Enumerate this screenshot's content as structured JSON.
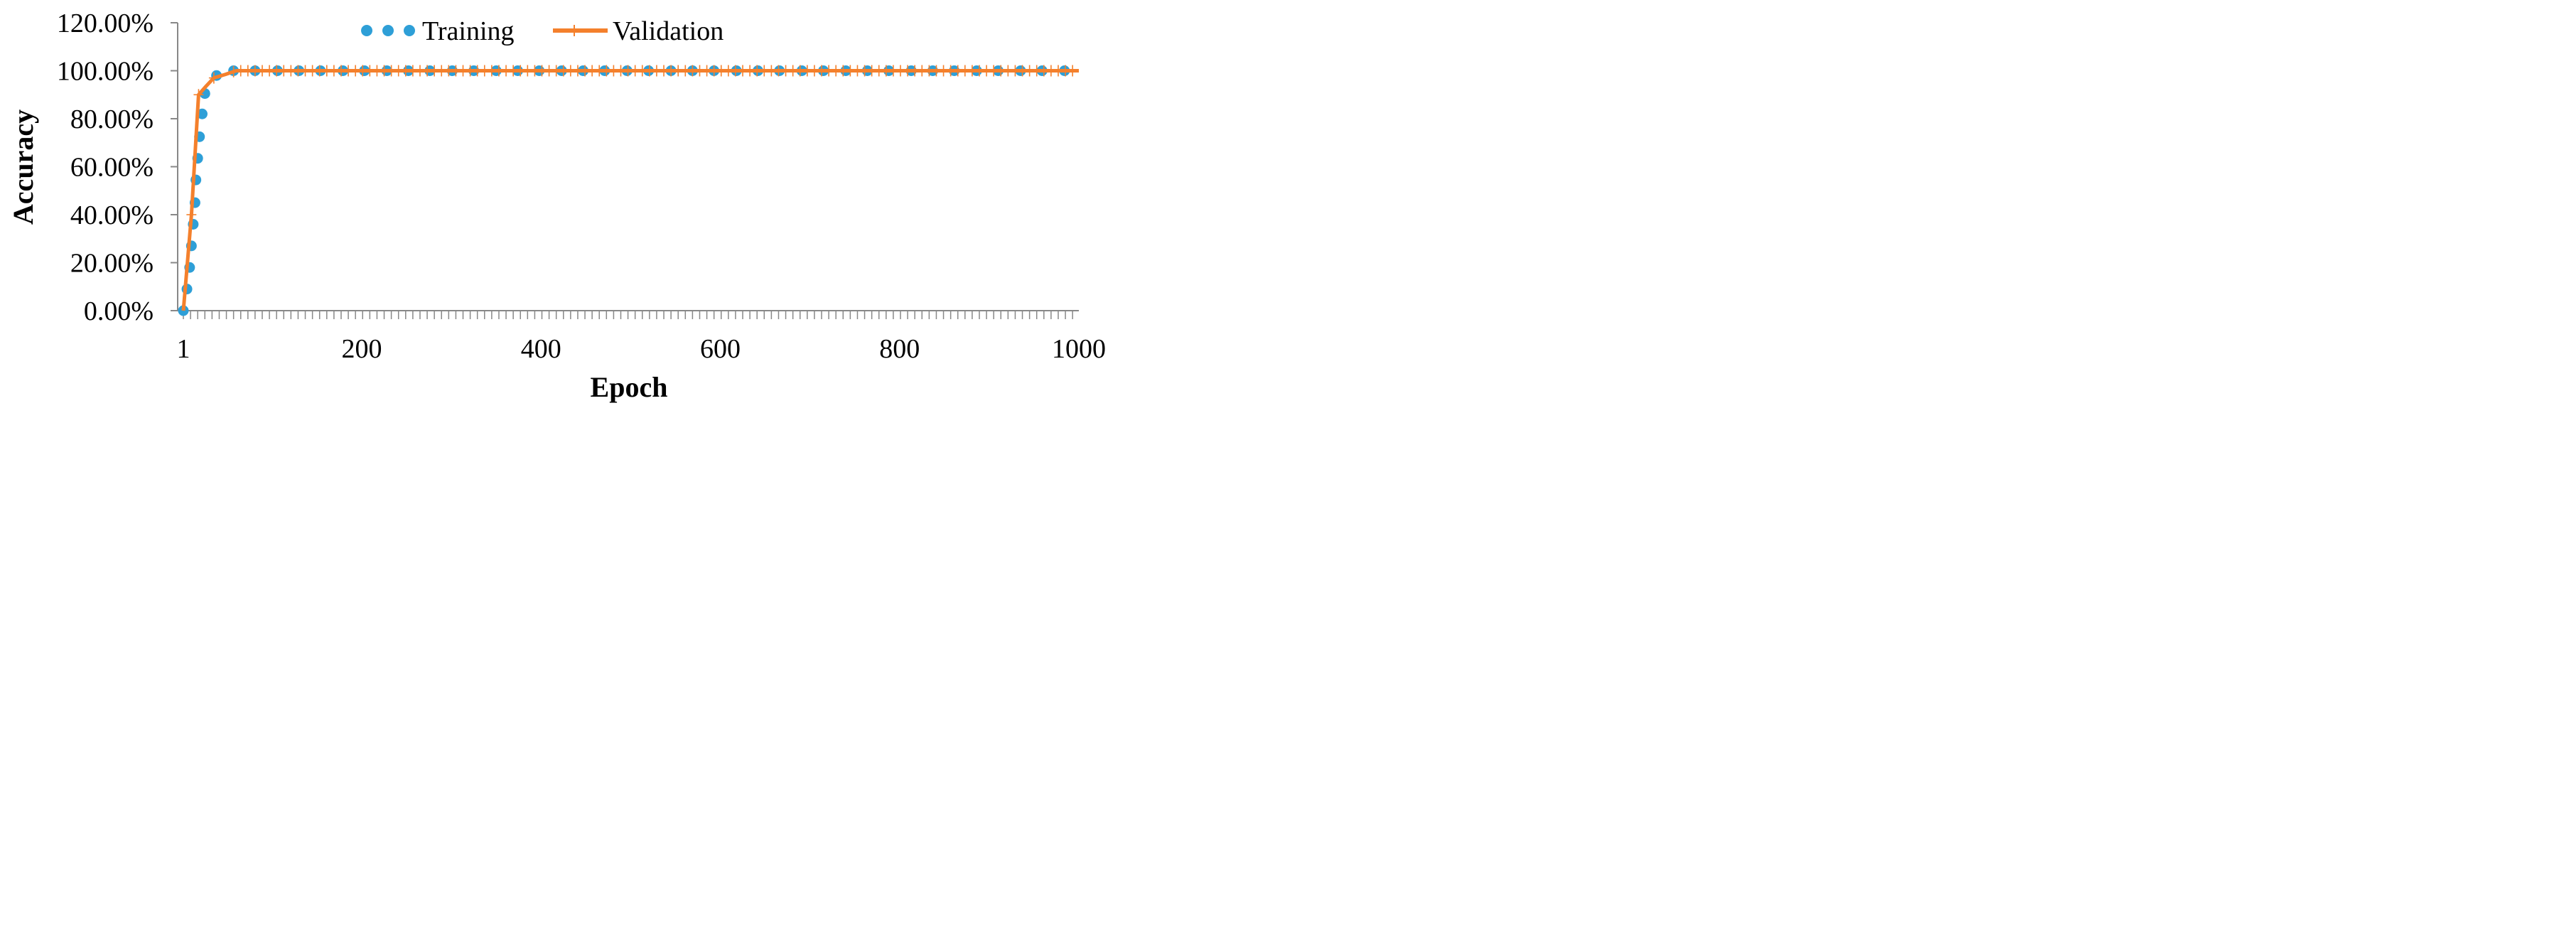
{
  "chart_data": {
    "type": "line",
    "title": "",
    "xlabel": "Epoch",
    "ylabel": "Accuracy",
    "xlim": [
      1,
      1000
    ],
    "ylim": [
      0,
      1.2
    ],
    "x_tick_labels": [
      "1",
      "200",
      "400",
      "600",
      "800",
      "1000"
    ],
    "x_tick_values": [
      1,
      200,
      400,
      600,
      800,
      1000
    ],
    "y_tick_labels": [
      "0.00%",
      "20.00%",
      "40.00%",
      "60.00%",
      "80.00%",
      "100.00%",
      "120.00%"
    ],
    "y_tick_values": [
      0,
      0.2,
      0.4,
      0.6,
      0.8,
      1.0,
      1.2
    ],
    "minor_x_tick_step": 8,
    "grid": false,
    "legend_position": "top",
    "series": [
      {
        "name": "Training",
        "style": "dots",
        "color": "#2E9FD7",
        "x": [
          1,
          5,
          8,
          10,
          12,
          14,
          15,
          17,
          19,
          22,
          25,
          38,
          57,
          81,
          106,
          130,
          154,
          179,
          203,
          228,
          252,
          276,
          301,
          325,
          350,
          374,
          398,
          423,
          447,
          471,
          496,
          520,
          545,
          569,
          593,
          618,
          642,
          666,
          691,
          715,
          740,
          764,
          788,
          813,
          837,
          861,
          886,
          910,
          935,
          959,
          984
        ],
        "y": [
          0.0,
          0.09,
          0.18,
          0.27,
          0.36,
          0.45,
          0.545,
          0.635,
          0.725,
          0.82,
          0.905,
          0.98,
          1.0,
          1.0,
          1.0,
          1.0,
          1.0,
          1.0,
          1.0,
          1.0,
          1.0,
          1.0,
          1.0,
          1.0,
          1.0,
          1.0,
          1.0,
          1.0,
          1.0,
          1.0,
          1.0,
          1.0,
          1.0,
          1.0,
          1.0,
          1.0,
          1.0,
          1.0,
          1.0,
          1.0,
          1.0,
          1.0,
          1.0,
          1.0,
          1.0,
          1.0,
          1.0,
          1.0,
          1.0,
          1.0,
          1.0
        ]
      },
      {
        "name": "Validation",
        "style": "line-plus",
        "color": "#F4802C",
        "x": [
          1,
          10,
          18,
          25,
          35,
          48,
          60,
          1000
        ],
        "y": [
          0.0,
          0.4,
          0.9,
          0.93,
          0.97,
          0.985,
          1.0,
          1.0
        ]
      }
    ]
  }
}
